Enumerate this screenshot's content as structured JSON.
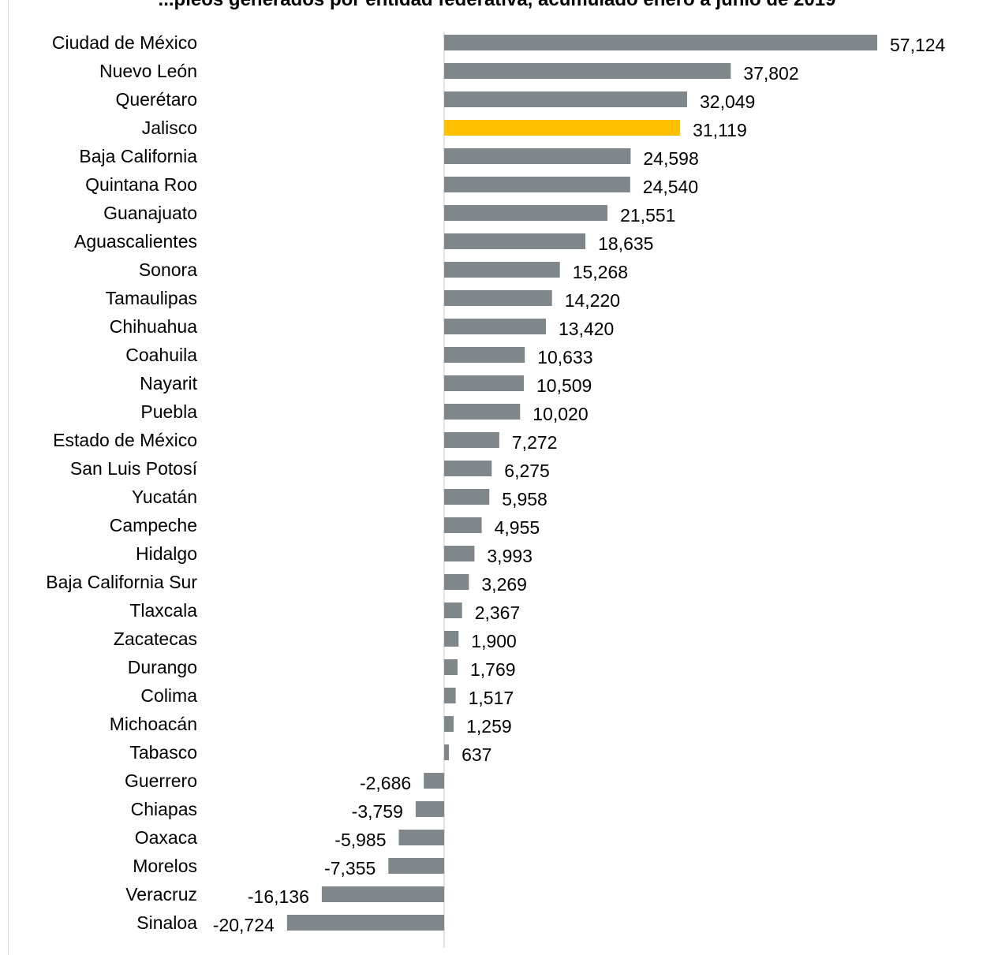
{
  "chart_data": {
    "type": "bar",
    "orientation": "horizontal",
    "title": "...pleos generados por entidad federativa, acumulado enero a junio de 2019",
    "categories": [
      "Ciudad de México",
      "Nuevo León",
      "Querétaro",
      "Jalisco",
      "Baja California",
      "Quintana Roo",
      "Guanajuato",
      "Aguascalientes",
      "Sonora",
      "Tamaulipas",
      "Chihuahua",
      "Coahuila",
      "Nayarit",
      "Puebla",
      "Estado de México",
      "San Luis Potosí",
      "Yucatán",
      "Campeche",
      "Hidalgo",
      "Baja California Sur",
      "Tlaxcala",
      "Zacatecas",
      "Durango",
      "Colima",
      "Michoacán",
      "Tabasco",
      "Guerrero",
      "Chiapas",
      "Oaxaca",
      "Morelos",
      "Veracruz",
      "Sinaloa"
    ],
    "values": [
      57124,
      37802,
      32049,
      31119,
      24598,
      24540,
      21551,
      18635,
      15268,
      14220,
      13420,
      10633,
      10509,
      10020,
      7272,
      6275,
      5958,
      4955,
      3993,
      3269,
      2367,
      1900,
      1769,
      1517,
      1259,
      637,
      -2686,
      -3759,
      -5985,
      -7355,
      -16136,
      -20724
    ],
    "value_labels": [
      "57,124",
      "37,802",
      "32,049",
      "31,119",
      "24,598",
      "24,540",
      "21,551",
      "18,635",
      "15,268",
      "14,220",
      "13,420",
      "10,633",
      "10,509",
      "10,020",
      "7,272",
      "6,275",
      "5,958",
      "4,955",
      "3,993",
      "3,269",
      "2,367",
      "1,900",
      "1,769",
      "1,517",
      "1,259",
      "637",
      "-2,686",
      "-3,759",
      "-5,985",
      "-7,355",
      "-16,136",
      "-20,724"
    ],
    "highlight": "Jalisco",
    "colors": {
      "bar": "#7f878b",
      "highlight": "#ffc000",
      "axis": "#d9d9d9"
    },
    "grid": false,
    "legend": "none"
  }
}
